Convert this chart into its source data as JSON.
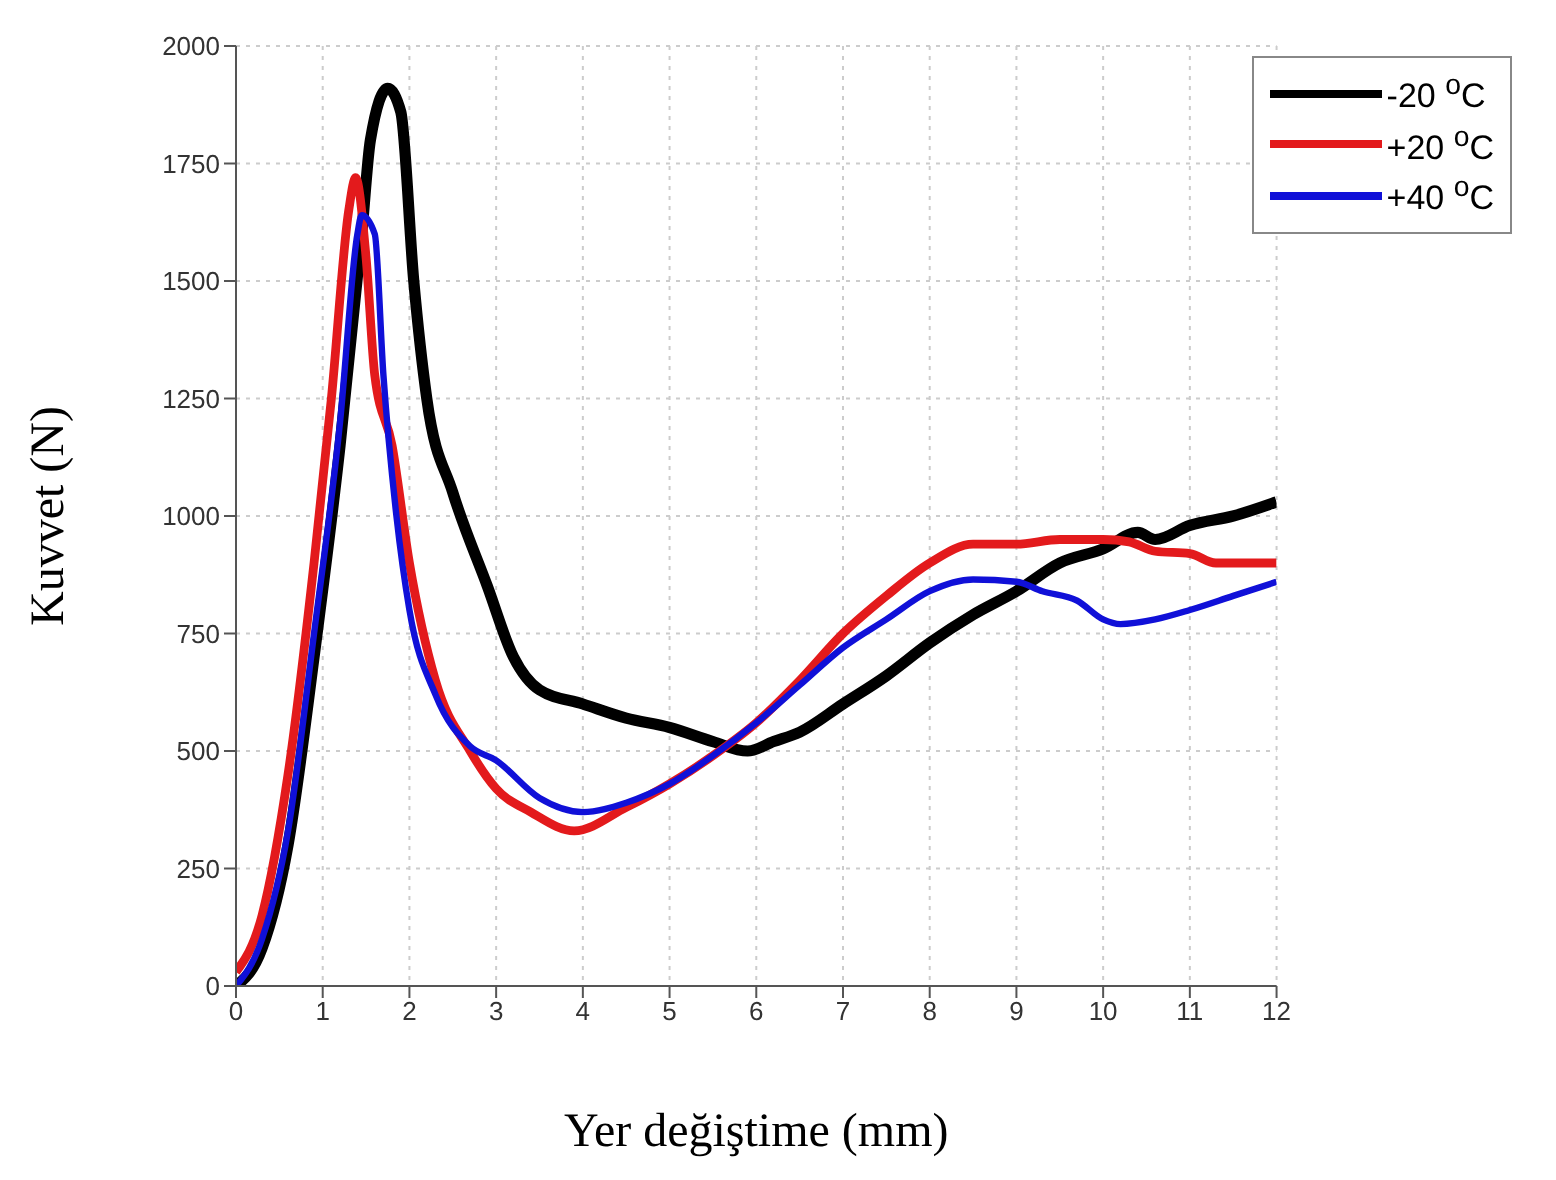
{
  "chart_data": {
    "type": "line",
    "xlabel": "Yer değiştime (mm)",
    "ylabel": "Kuvvet (N)",
    "xlim": [
      0,
      12
    ],
    "xticks": [
      0,
      1,
      2,
      3,
      4,
      5,
      6,
      7,
      8,
      9,
      10,
      11,
      12
    ],
    "ylim": [
      0,
      2000
    ],
    "yticks": [
      0,
      250,
      500,
      750,
      1000,
      1250,
      1500,
      1750,
      2000
    ],
    "grid": true,
    "legend": "top right",
    "marker": "none",
    "line_style": "solid",
    "series": [
      {
        "name": "-20 $^{o}$C",
        "color": "#000000",
        "x": [
          0,
          0.3,
          0.6,
          0.9,
          1.2,
          1.45,
          1.55,
          1.75,
          1.9,
          2.05,
          2.2,
          2.5,
          2.9,
          3.2,
          3.5,
          4,
          4.5,
          5,
          5.5,
          5.9,
          6.2,
          6.5,
          7,
          7.5,
          8,
          8.5,
          9,
          9.5,
          10,
          10.4,
          10.6,
          11,
          11.5,
          12
        ],
        "values": [
          0,
          80,
          300,
          700,
          1150,
          1600,
          1800,
          1910,
          1860,
          1500,
          1250,
          1050,
          850,
          700,
          630,
          600,
          570,
          550,
          520,
          500,
          520,
          540,
          600,
          660,
          730,
          790,
          840,
          900,
          930,
          965,
          950,
          980,
          1000,
          1030
        ]
      },
      {
        "name": "+20 $^{o}$C",
        "color": "#e31a1c",
        "x": [
          0,
          0.3,
          0.6,
          0.9,
          1.1,
          1.3,
          1.38,
          1.5,
          1.6,
          1.8,
          2,
          2.3,
          2.7,
          3,
          3.4,
          3.9,
          4.5,
          5,
          5.5,
          6,
          6.5,
          7,
          7.5,
          8,
          8.5,
          9,
          9.5,
          10,
          10.3,
          10.6,
          11,
          11.3,
          12
        ],
        "values": [
          30,
          150,
          450,
          900,
          1250,
          1650,
          1720,
          1550,
          1300,
          1150,
          900,
          650,
          500,
          420,
          370,
          330,
          380,
          430,
          490,
          560,
          650,
          750,
          830,
          900,
          940,
          940,
          950,
          950,
          945,
          925,
          920,
          900,
          900
        ]
      },
      {
        "name": "+40 $^{o}$C",
        "color": "#1010d8",
        "x": [
          0,
          0.3,
          0.6,
          0.9,
          1.2,
          1.4,
          1.45,
          1.6,
          1.7,
          1.85,
          2,
          2.3,
          2.7,
          3,
          3.5,
          4,
          4.5,
          5,
          5.5,
          6,
          6.5,
          7,
          7.5,
          8,
          8.5,
          9,
          9.3,
          9.7,
          10,
          10.2,
          10.6,
          11,
          11.5,
          12
        ],
        "values": [
          0,
          100,
          330,
          750,
          1200,
          1600,
          1640,
          1600,
          1300,
          1000,
          800,
          620,
          510,
          480,
          400,
          370,
          390,
          430,
          490,
          560,
          640,
          720,
          780,
          840,
          865,
          860,
          840,
          820,
          780,
          770,
          780,
          800,
          830,
          860
        ]
      }
    ]
  }
}
